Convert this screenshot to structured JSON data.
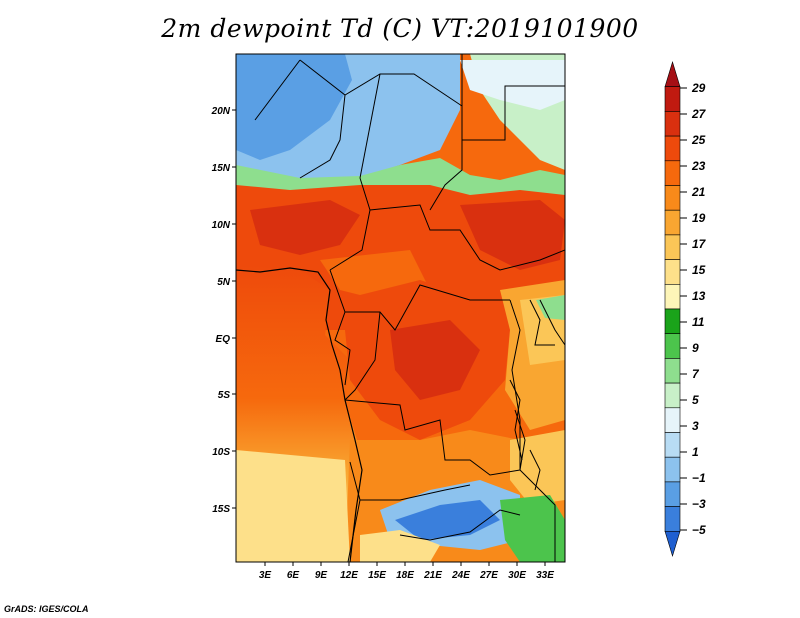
{
  "title": "2m dewpoint Td (C) VT:2019101900",
  "credit": "GrADS: IGES/COLA",
  "map": {
    "lat_labels": [
      "20N",
      "15N",
      "10N",
      "5N",
      "EQ",
      "5S",
      "10S",
      "15S"
    ],
    "lon_labels": [
      "3E",
      "6E",
      "9E",
      "12E",
      "15E",
      "18E",
      "21E",
      "24E",
      "27E",
      "30E",
      "33E"
    ]
  },
  "colorbar": {
    "labels": [
      "29",
      "27",
      "25",
      "23",
      "21",
      "19",
      "17",
      "15",
      "13",
      "11",
      "9",
      "7",
      "5",
      "3",
      "1",
      "−1",
      "−3",
      "−5"
    ],
    "colors": [
      "#a50f15",
      "#c01a10",
      "#d9300f",
      "#ee4a0c",
      "#f6690d",
      "#f88a1a",
      "#f9a631",
      "#fbc657",
      "#fde08a",
      "#fdf5b8",
      "#1aa31a",
      "#4cc44c",
      "#8ede8e",
      "#c8f0c8",
      "#e6f4fa",
      "#b8dcf4",
      "#8cc2ee",
      "#5a9fe4",
      "#3a7fdc",
      "#1f5fd0"
    ]
  }
}
